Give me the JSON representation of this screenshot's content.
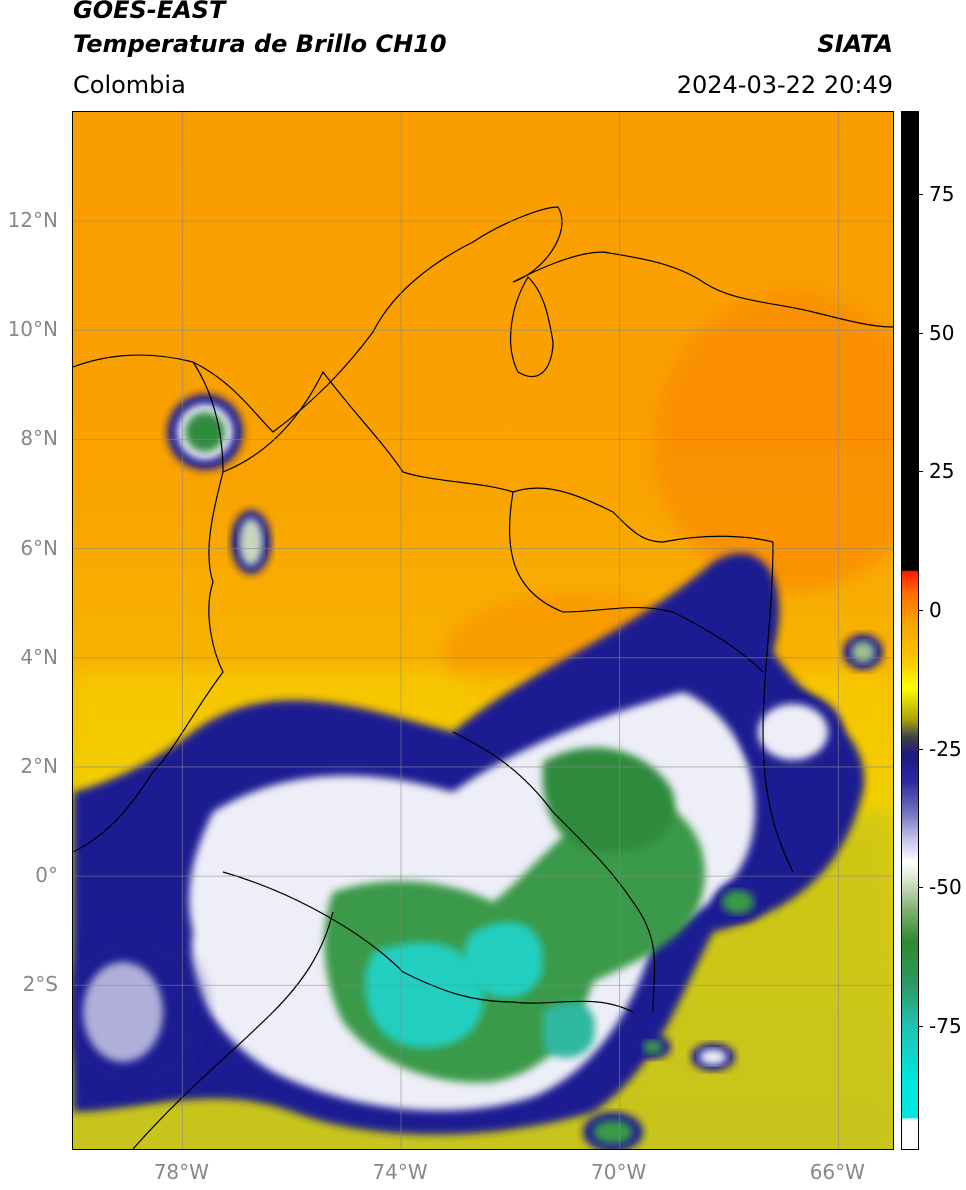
{
  "header": {
    "satellite": "GOES-EAST",
    "product": "Temperatura de Brillo CH10",
    "region": "Colombia",
    "organization": "SIATA",
    "datetime": "2024-03-22 20:49"
  },
  "map": {
    "lon_range": [
      -80,
      -65
    ],
    "lat_range": [
      -5,
      14
    ],
    "lat_ticks": [
      {
        "value": 12,
        "label": "12°N"
      },
      {
        "value": 10,
        "label": "10°N"
      },
      {
        "value": 8,
        "label": "8°N"
      },
      {
        "value": 6,
        "label": "6°N"
      },
      {
        "value": 4,
        "label": "4°N"
      },
      {
        "value": 2,
        "label": "2°N"
      },
      {
        "value": 0,
        "label": "0°"
      },
      {
        "value": -2,
        "label": "2°S"
      }
    ],
    "lon_ticks": [
      {
        "value": -78,
        "label": "78°W"
      },
      {
        "value": -74,
        "label": "74°W"
      },
      {
        "value": -70,
        "label": "70°W"
      },
      {
        "value": -66,
        "label": "66°W"
      }
    ],
    "gridlines": true,
    "colors": {
      "warm_orange": "#fa9d00",
      "yellow": "#f5d800",
      "olive": "#c8c41e",
      "deep_blue": "#1a1a8c",
      "white_cloud": "#ffffff",
      "green_cloud": "#2e8b3e",
      "cyan_cloud": "#20d8c8"
    }
  },
  "colorbar": {
    "range": [
      -97,
      90
    ],
    "ticks": [
      {
        "value": 75,
        "label": "75"
      },
      {
        "value": 50,
        "label": "50"
      },
      {
        "value": 25,
        "label": "25"
      },
      {
        "value": 0,
        "label": "0"
      },
      {
        "value": -25,
        "label": "-25"
      },
      {
        "value": -50,
        "label": "-50"
      },
      {
        "value": -75,
        "label": "-75"
      }
    ]
  }
}
